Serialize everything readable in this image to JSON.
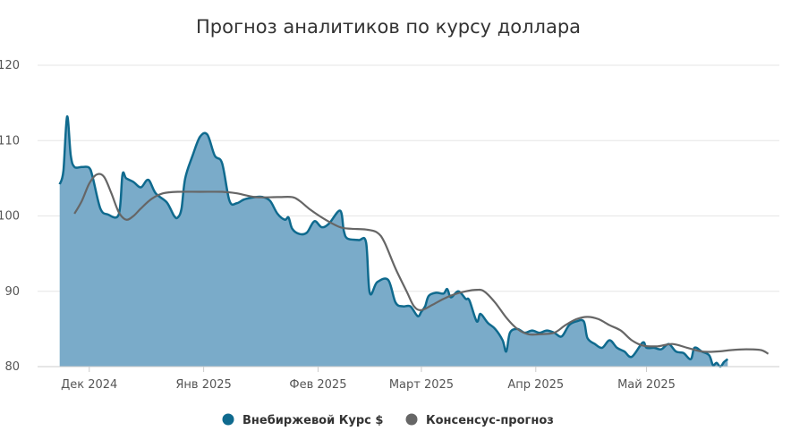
{
  "chart_data": {
    "type": "area",
    "title": "Прогноз аналитиков по курсу доллара",
    "xlabel": "",
    "ylabel": "",
    "ylim": [
      80,
      120
    ],
    "yticks": [
      80,
      90,
      100,
      110,
      120
    ],
    "x_ticks": [
      {
        "label": "Дек 2024",
        "date": "2024-12-01"
      },
      {
        "label": "Янв 2025",
        "date": "2025-01-01"
      },
      {
        "label": "Фев 2025",
        "date": "2025-02-01"
      },
      {
        "label": "Март 2025",
        "date": "2025-03-01"
      },
      {
        "label": "Апр 2025",
        "date": "2025-04-01"
      },
      {
        "label": "Май 2025",
        "date": "2025-05-01"
      }
    ],
    "grid": true,
    "legend_position": "bottom",
    "series": [
      {
        "name": "Внебиржевой Курс $",
        "type": "area",
        "color": "#0f6a8e",
        "fill": "#7aabc9",
        "points": [
          [
            "2024-11-23",
            104.2
          ],
          [
            "2024-11-24",
            106.0
          ],
          [
            "2024-11-25",
            113.2
          ],
          [
            "2024-11-26",
            108.0
          ],
          [
            "2024-11-27",
            106.5
          ],
          [
            "2024-11-29",
            106.5
          ],
          [
            "2024-12-01",
            106.4
          ],
          [
            "2024-12-02",
            105.0
          ],
          [
            "2024-12-04",
            101.0
          ],
          [
            "2024-12-06",
            100.2
          ],
          [
            "2024-12-09",
            100.2
          ],
          [
            "2024-12-10",
            105.5
          ],
          [
            "2024-12-11",
            105.0
          ],
          [
            "2024-12-13",
            104.5
          ],
          [
            "2024-12-15",
            103.8
          ],
          [
            "2024-12-17",
            104.8
          ],
          [
            "2024-12-19",
            103.0
          ],
          [
            "2024-12-22",
            101.8
          ],
          [
            "2024-12-24",
            100.0
          ],
          [
            "2024-12-25",
            99.8
          ],
          [
            "2024-12-26",
            101.0
          ],
          [
            "2024-12-27",
            105.0
          ],
          [
            "2024-12-29",
            108.0
          ],
          [
            "2024-12-31",
            110.5
          ],
          [
            "2025-01-02",
            110.8
          ],
          [
            "2025-01-04",
            108.0
          ],
          [
            "2025-01-06",
            107.0
          ],
          [
            "2025-01-08",
            102.0
          ],
          [
            "2025-01-10",
            101.7
          ],
          [
            "2025-01-12",
            102.2
          ],
          [
            "2025-01-15",
            102.5
          ],
          [
            "2025-01-17",
            102.5
          ],
          [
            "2025-01-19",
            102.0
          ],
          [
            "2025-01-21",
            100.3
          ],
          [
            "2025-01-23",
            99.5
          ],
          [
            "2025-01-24",
            99.8
          ],
          [
            "2025-01-25",
            98.3
          ],
          [
            "2025-01-27",
            97.6
          ],
          [
            "2025-01-29",
            97.8
          ],
          [
            "2025-01-31",
            99.3
          ],
          [
            "2025-02-02",
            98.5
          ],
          [
            "2025-02-04",
            99.0
          ],
          [
            "2025-02-07",
            100.7
          ],
          [
            "2025-02-08",
            98.0
          ],
          [
            "2025-02-09",
            97.0
          ],
          [
            "2025-02-12",
            96.8
          ],
          [
            "2025-02-14",
            96.5
          ],
          [
            "2025-02-15",
            89.8
          ],
          [
            "2025-02-17",
            91.2
          ],
          [
            "2025-02-20",
            91.5
          ],
          [
            "2025-02-22",
            88.5
          ],
          [
            "2025-02-24",
            88.0
          ],
          [
            "2025-02-26",
            88.0
          ],
          [
            "2025-02-28",
            86.7
          ],
          [
            "2025-03-01",
            87.3
          ],
          [
            "2025-03-02",
            88.0
          ],
          [
            "2025-03-03",
            89.4
          ],
          [
            "2025-03-05",
            89.8
          ],
          [
            "2025-03-07",
            89.7
          ],
          [
            "2025-03-08",
            90.3
          ],
          [
            "2025-03-09",
            89.2
          ],
          [
            "2025-03-11",
            90.0
          ],
          [
            "2025-03-13",
            89.0
          ],
          [
            "2025-03-14",
            88.8
          ],
          [
            "2025-03-16",
            86.0
          ],
          [
            "2025-03-17",
            87.0
          ],
          [
            "2025-03-19",
            85.8
          ],
          [
            "2025-03-21",
            85.0
          ],
          [
            "2025-03-23",
            83.5
          ],
          [
            "2025-03-24",
            82.0
          ],
          [
            "2025-03-25",
            84.5
          ],
          [
            "2025-03-27",
            85.0
          ],
          [
            "2025-03-29",
            84.5
          ],
          [
            "2025-03-31",
            84.8
          ],
          [
            "2025-04-02",
            84.5
          ],
          [
            "2025-04-04",
            84.8
          ],
          [
            "2025-04-06",
            84.5
          ],
          [
            "2025-04-08",
            84.0
          ],
          [
            "2025-04-10",
            85.5
          ],
          [
            "2025-04-12",
            86.0
          ],
          [
            "2025-04-14",
            86.0
          ],
          [
            "2025-04-15",
            83.8
          ],
          [
            "2025-04-17",
            83.0
          ],
          [
            "2025-04-19",
            82.5
          ],
          [
            "2025-04-21",
            83.5
          ],
          [
            "2025-04-23",
            82.5
          ],
          [
            "2025-04-25",
            82.0
          ],
          [
            "2025-04-27",
            81.3
          ],
          [
            "2025-04-30",
            83.2
          ],
          [
            "2025-05-01",
            82.5
          ],
          [
            "2025-05-03",
            82.5
          ],
          [
            "2025-05-05",
            82.3
          ],
          [
            "2025-05-07",
            83.0
          ],
          [
            "2025-05-09",
            82.0
          ],
          [
            "2025-05-11",
            81.8
          ],
          [
            "2025-05-13",
            81.0
          ],
          [
            "2025-05-14",
            82.5
          ],
          [
            "2025-05-16",
            82.0
          ],
          [
            "2025-05-18",
            81.5
          ],
          [
            "2025-05-19",
            80.2
          ],
          [
            "2025-05-20",
            80.5
          ],
          [
            "2025-05-21",
            80.0
          ],
          [
            "2025-05-22",
            80.6
          ],
          [
            "2025-05-23",
            81.0
          ]
        ]
      },
      {
        "name": "Консенсус-прогноз",
        "type": "line",
        "color": "#666666",
        "points": [
          [
            "2024-11-27",
            100.3
          ],
          [
            "2024-11-29",
            102.0
          ],
          [
            "2024-12-01",
            104.3
          ],
          [
            "2024-12-03",
            105.5
          ],
          [
            "2024-12-05",
            105.2
          ],
          [
            "2024-12-07",
            103.0
          ],
          [
            "2024-12-09",
            100.5
          ],
          [
            "2024-12-11",
            99.5
          ],
          [
            "2024-12-13",
            100.0
          ],
          [
            "2024-12-15",
            101.0
          ],
          [
            "2024-12-18",
            102.3
          ],
          [
            "2024-12-21",
            103.0
          ],
          [
            "2024-12-25",
            103.2
          ],
          [
            "2024-12-31",
            103.2
          ],
          [
            "2025-01-06",
            103.2
          ],
          [
            "2025-01-10",
            103.0
          ],
          [
            "2025-01-15",
            102.5
          ],
          [
            "2025-01-21",
            102.5
          ],
          [
            "2025-01-25",
            102.5
          ],
          [
            "2025-01-27",
            102.0
          ],
          [
            "2025-01-30",
            100.8
          ],
          [
            "2025-02-03",
            99.5
          ],
          [
            "2025-02-07",
            98.5
          ],
          [
            "2025-02-10",
            98.3
          ],
          [
            "2025-02-14",
            98.2
          ],
          [
            "2025-02-17",
            97.8
          ],
          [
            "2025-02-19",
            96.5
          ],
          [
            "2025-02-22",
            93.0
          ],
          [
            "2025-02-25",
            90.0
          ],
          [
            "2025-02-27",
            88.0
          ],
          [
            "2025-03-01",
            87.5
          ],
          [
            "2025-03-04",
            88.2
          ],
          [
            "2025-03-07",
            89.0
          ],
          [
            "2025-03-10",
            89.6
          ],
          [
            "2025-03-13",
            90.0
          ],
          [
            "2025-03-16",
            90.2
          ],
          [
            "2025-03-18",
            90.0
          ],
          [
            "2025-03-21",
            88.5
          ],
          [
            "2025-03-24",
            86.5
          ],
          [
            "2025-03-27",
            85.0
          ],
          [
            "2025-03-30",
            84.3
          ],
          [
            "2025-04-02",
            84.3
          ],
          [
            "2025-04-06",
            84.5
          ],
          [
            "2025-04-09",
            85.5
          ],
          [
            "2025-04-12",
            86.3
          ],
          [
            "2025-04-15",
            86.6
          ],
          [
            "2025-04-18",
            86.3
          ],
          [
            "2025-04-21",
            85.5
          ],
          [
            "2025-04-24",
            84.8
          ],
          [
            "2025-04-27",
            83.5
          ],
          [
            "2025-04-30",
            82.8
          ],
          [
            "2025-05-04",
            82.7
          ],
          [
            "2025-05-08",
            83.0
          ],
          [
            "2025-05-12",
            82.5
          ],
          [
            "2025-05-16",
            82.0
          ],
          [
            "2025-05-20",
            82.0
          ],
          [
            "2025-05-24",
            82.2
          ],
          [
            "2025-05-28",
            82.3
          ],
          [
            "2025-06-01",
            82.2
          ],
          [
            "2025-06-03",
            81.7
          ]
        ]
      }
    ]
  }
}
